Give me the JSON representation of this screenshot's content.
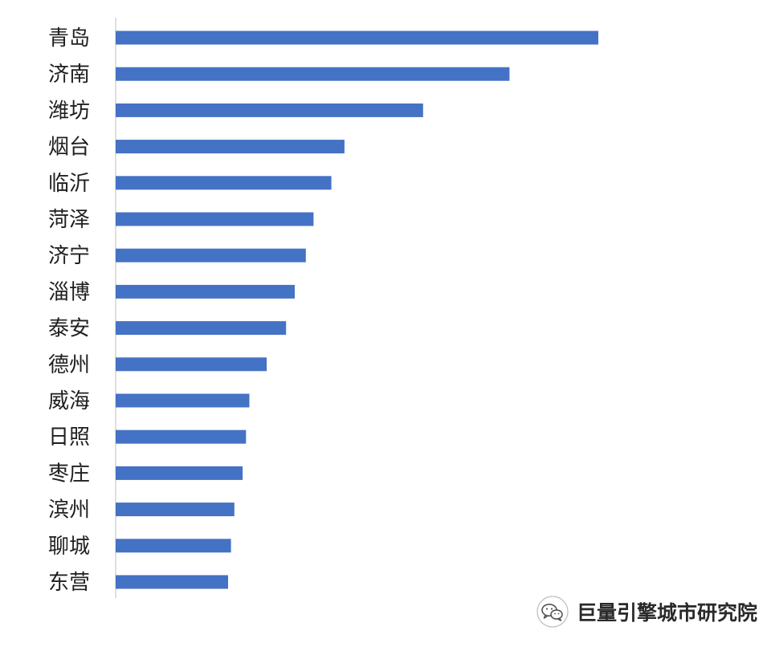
{
  "chart_data": {
    "type": "bar",
    "orientation": "horizontal",
    "categories": [
      "青岛",
      "济南",
      "潍坊",
      "烟台",
      "临沂",
      "菏泽",
      "济宁",
      "淄博",
      "泰安",
      "德州",
      "威海",
      "日照",
      "枣庄",
      "滨州",
      "聊城",
      "东营"
    ],
    "values": [
      100,
      81.6,
      63.7,
      47.4,
      44.7,
      41,
      39.4,
      37.1,
      35.3,
      31.3,
      27.7,
      27,
      26.3,
      24.6,
      23.9,
      23.3
    ],
    "xlim": [
      0,
      100
    ],
    "bar_color": "#4472C4",
    "axis_color": "#BFBFBF",
    "grid": false,
    "legend": "none",
    "title": "",
    "xlabel": "",
    "ylabel": ""
  },
  "watermark": {
    "text": "巨量引擎城市研究院",
    "icon": "wechat-icon"
  }
}
